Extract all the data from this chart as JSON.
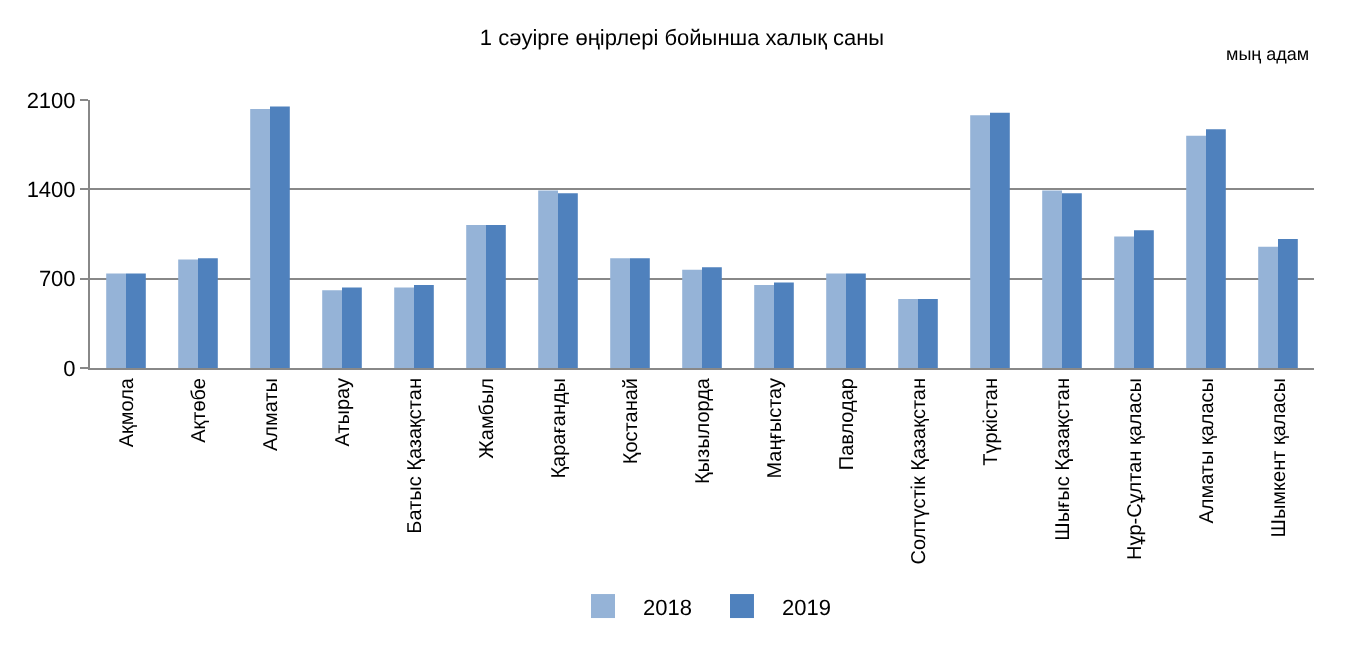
{
  "chart_data": {
    "type": "bar",
    "title": "1 сәуірге өңірлері бойынша халық саны",
    "annotations": [
      "мың адам"
    ],
    "categories": [
      "Ақмола",
      "Ақтөбе",
      "Алматы",
      "Атырау",
      "Батыс Қазақстан",
      "Жамбыл",
      "Қарағанды",
      "Қостанай",
      "Қызылорда",
      "Маңғыстау",
      "Павлодар",
      "Солтүстік Қазақстан",
      "Түркістан",
      "Шығыс Қазақстан",
      "Нұр-Сұлтан қаласы",
      "Алматы қаласы",
      "Шымкент қаласы"
    ],
    "series": [
      {
        "name": "2018",
        "color": "#95b3d7",
        "values": [
          740,
          850,
          2030,
          610,
          630,
          1120,
          1390,
          860,
          770,
          650,
          740,
          540,
          1980,
          1390,
          1030,
          1820,
          950
        ]
      },
      {
        "name": "2019",
        "color": "#4f81bd",
        "values": [
          740,
          860,
          2050,
          630,
          650,
          1120,
          1370,
          860,
          790,
          670,
          740,
          540,
          2000,
          1370,
          1080,
          1870,
          1010
        ]
      }
    ],
    "ylim": [
      0,
      2100
    ],
    "yticks": [
      0,
      700,
      1400,
      2100
    ],
    "grid": "y",
    "legend": "bottom"
  }
}
